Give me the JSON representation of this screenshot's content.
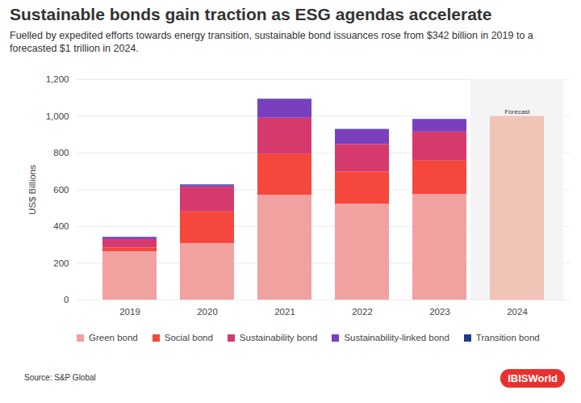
{
  "chart_data": {
    "type": "bar",
    "title": "Sustainable bonds gain traction as ESG agendas accelerate",
    "subtitle": "Fuelled by expedited efforts towards energy transition, sustainable bond issuances rose from $342 billion in 2019 to a forecasted $1 trillion in 2024.",
    "y_label": "US$ Billions",
    "categories": [
      "2019",
      "2020",
      "2021",
      "2022",
      "2023",
      "2024"
    ],
    "series": [
      {
        "name": "Green bond",
        "color": "#f2a1a1",
        "values": [
          263,
          308,
          570,
          522,
          575,
          null
        ]
      },
      {
        "name": "Social bond",
        "color": "#f5473b",
        "values": [
          20,
          172,
          222,
          175,
          182,
          null
        ]
      },
      {
        "name": "Sustainability bond",
        "color": "#d63a6d",
        "values": [
          47,
          135,
          198,
          150,
          158,
          null
        ]
      },
      {
        "name": "Sustainability-linked bond",
        "color": "#7a3fbf",
        "values": [
          10,
          8,
          100,
          80,
          65,
          null
        ]
      },
      {
        "name": "Transition bond",
        "color": "#1f3a8a",
        "values": [
          2,
          4,
          3,
          2,
          3,
          null
        ]
      }
    ],
    "forecast": {
      "category": "2024",
      "value": 1000,
      "label": "Forecast",
      "color": "#f2c3b7"
    },
    "ylim": [
      0,
      1200
    ],
    "yticks": [
      0,
      200,
      400,
      600,
      800,
      1000,
      1200
    ],
    "grid": true,
    "stacked": true,
    "source": "Source: S&P Global",
    "logo": "IBISWorld"
  }
}
